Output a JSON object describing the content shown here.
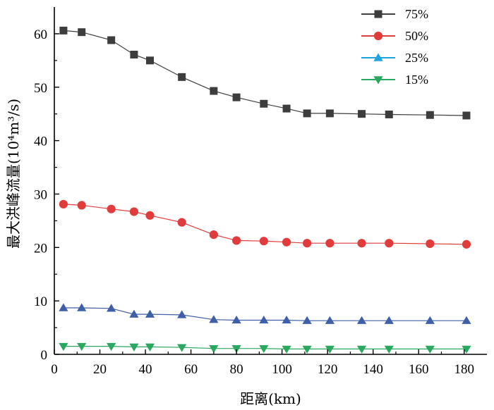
{
  "chart_data": {
    "type": "line",
    "xlabel": "距离(km)",
    "ylabel": "最大洪峰流量(10⁴m³/s)",
    "xlim": [
      0,
      190
    ],
    "ylim": [
      0,
      65
    ],
    "xticks": [
      0,
      20,
      40,
      60,
      80,
      100,
      120,
      140,
      160,
      180
    ],
    "yticks": [
      0,
      10,
      20,
      30,
      40,
      50,
      60
    ],
    "grid": false,
    "legend_position": "top-right",
    "x": [
      4,
      12,
      25,
      35,
      42,
      56,
      70,
      80,
      92,
      102,
      111,
      121,
      135,
      147,
      165,
      181
    ],
    "series": [
      {
        "name": "75%",
        "color": "#3d3d3d",
        "marker": "square",
        "values": [
          60.6,
          60.3,
          58.8,
          56.1,
          55.0,
          51.9,
          49.3,
          48.1,
          46.9,
          46.0,
          45.1,
          45.1,
          45.0,
          44.9,
          44.8,
          44.7
        ]
      },
      {
        "name": "50%",
        "color": "#e03c3c",
        "marker": "circle",
        "values": [
          28.1,
          27.9,
          27.2,
          26.7,
          26.0,
          24.7,
          22.4,
          21.3,
          21.2,
          21.0,
          20.8,
          20.8,
          20.8,
          20.8,
          20.7,
          20.6
        ]
      },
      {
        "name": "25%",
        "color": "#3f5fa8",
        "legend_color": "#1da4dc",
        "marker": "triangle-up",
        "values": [
          8.7,
          8.7,
          8.6,
          7.5,
          7.5,
          7.4,
          6.5,
          6.4,
          6.4,
          6.4,
          6.3,
          6.3,
          6.3,
          6.3,
          6.3,
          6.3
        ]
      },
      {
        "name": "15%",
        "color": "#2aa860",
        "marker": "triangle-down",
        "values": [
          1.5,
          1.5,
          1.5,
          1.4,
          1.4,
          1.3,
          1.1,
          1.1,
          1.1,
          1.0,
          1.0,
          1.0,
          1.0,
          1.0,
          1.0,
          1.0
        ]
      }
    ]
  }
}
